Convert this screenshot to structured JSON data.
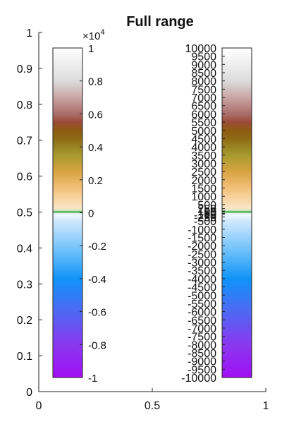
{
  "chart_data": {
    "type": "colorbar",
    "title": "Full range",
    "axes": {
      "xlim": [
        0,
        1
      ],
      "ylim": [
        0,
        1
      ],
      "xticks": [
        "0",
        "0.5",
        "1"
      ],
      "yticks": [
        "0",
        "0.1",
        "0.2",
        "0.3",
        "0.4",
        "0.5",
        "0.6",
        "0.7",
        "0.8",
        "0.9",
        "1"
      ],
      "grid": false
    },
    "colorbar_left": {
      "multiplier_base": "×10",
      "multiplier_exp": "4",
      "range": [
        -1,
        1
      ],
      "ticks": [
        "1",
        "0.8",
        "0.6",
        "0.4",
        "0.2",
        "0",
        "-0.2",
        "-0.4",
        "-0.6",
        "-0.8",
        "-1"
      ]
    },
    "colorbar_right": {
      "range": [
        -10000,
        10000
      ],
      "ticks": [
        "10000",
        "9500",
        "9000",
        "8500",
        "8000",
        "7500",
        "7000",
        "6500",
        "6000",
        "5500",
        "5000",
        "4500",
        "4000",
        "3500",
        "3000",
        "2500",
        "2000",
        "1500",
        "1000",
        "500",
        "250",
        "100",
        "50",
        "-50",
        "-100",
        "-250",
        "-500",
        "-1000",
        "-1500",
        "-2000",
        "-2500",
        "-3000",
        "-3500",
        "-4000",
        "-4500",
        "-5000",
        "-5500",
        "-6000",
        "-6500",
        "-7000",
        "-7500",
        "-8000",
        "-8500",
        "-9000",
        "-9500",
        "-10000"
      ]
    },
    "colormap": [
      {
        "v": -10000,
        "c": "#a10ff2"
      },
      {
        "v": -8000,
        "c": "#8a38f0"
      },
      {
        "v": -6000,
        "c": "#4f68f2"
      },
      {
        "v": -4000,
        "c": "#0f94f7"
      },
      {
        "v": -2000,
        "c": "#7fc7fb"
      },
      {
        "v": -500,
        "c": "#cfe8fd"
      },
      {
        "v": -50,
        "c": "#f7fbff"
      },
      {
        "v": 0,
        "c": "#0e6b2a"
      },
      {
        "v": 50,
        "c": "#3fb04f"
      },
      {
        "v": 100,
        "c": "#b5e3b0"
      },
      {
        "v": 250,
        "c": "#fae8c7"
      },
      {
        "v": 1500,
        "c": "#f3c07a"
      },
      {
        "v": 2500,
        "c": "#d8a442"
      },
      {
        "v": 3500,
        "c": "#a69a2e"
      },
      {
        "v": 4500,
        "c": "#8e6a16"
      },
      {
        "v": 5000,
        "c": "#8f5c10"
      },
      {
        "v": 5500,
        "c": "#9a4b3a"
      },
      {
        "v": 6000,
        "c": "#aa6e6a"
      },
      {
        "v": 7000,
        "c": "#c9a5a5"
      },
      {
        "v": 8000,
        "c": "#dcdcdc"
      },
      {
        "v": 10000,
        "c": "#ffffff"
      }
    ]
  }
}
